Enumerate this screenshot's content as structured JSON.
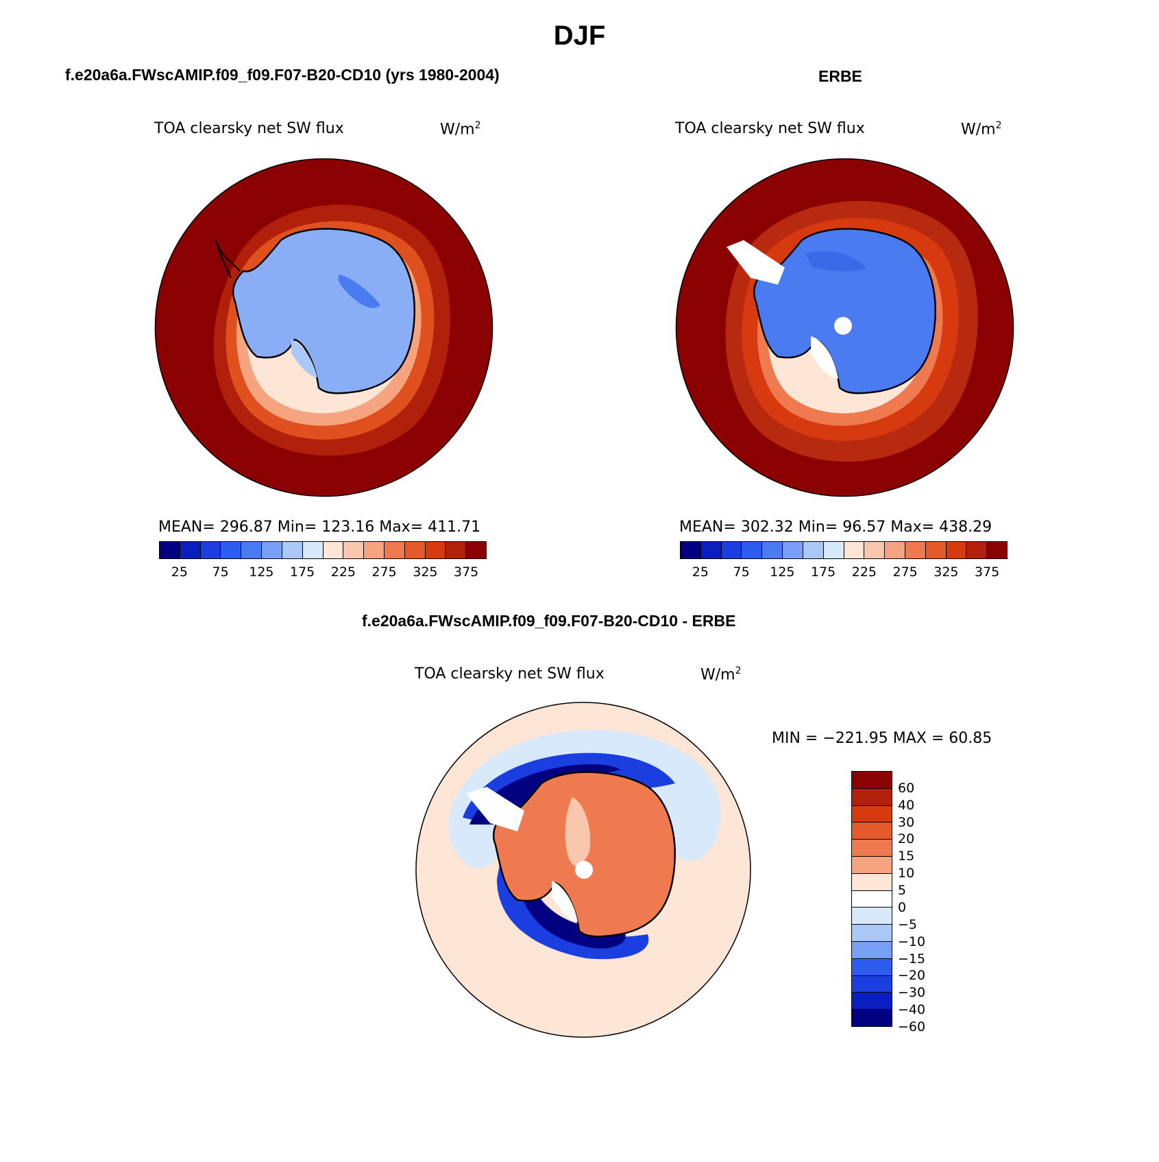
{
  "title": "DJF",
  "panels": [
    {
      "case": "f.e20a6a.FWscAMIP.f09_f09.F07-B20-CD10 (yrs 1980-2004)",
      "variable": "TOA clearsky net SW flux",
      "units": "W/m",
      "units_sup": "2",
      "stats": "MEAN= 296.87   Min= 123.16   Max= 411.71",
      "colorbar_ticks": [
        "25",
        "75",
        "125",
        "175",
        "225",
        "275",
        "325",
        "375"
      ],
      "colorbar_colors": [
        "#000080",
        "#0a1fbf",
        "#1a3ee0",
        "#2e5cf0",
        "#4a7bf0",
        "#7aa0f5",
        "#aac8f8",
        "#d8e9fb",
        "#fde6d6",
        "#f8c7ad",
        "#f5a47f",
        "#f07a50",
        "#e55a2a",
        "#d83a10",
        "#b0200a",
        "#8b0000"
      ],
      "fill": {
        "outer": "#8b0000",
        "ring1": "#b0200a",
        "ring2": "#e0501e",
        "ring3": "#f5a47f",
        "ring4": "#fde6d6",
        "ice": "#8aaef5",
        "ice_core": "#4a7bf0",
        "ice_shelf": "#aac8f8"
      }
    },
    {
      "case": "ERBE",
      "variable": "TOA clearsky net SW flux",
      "units": "W/m",
      "units_sup": "2",
      "stats": "MEAN= 302.32   Min=   96.57   Max= 438.29",
      "colorbar_ticks": [
        "25",
        "75",
        "125",
        "175",
        "225",
        "275",
        "325",
        "375"
      ],
      "colorbar_colors": [
        "#000080",
        "#0a1fbf",
        "#1a3ee0",
        "#2e5cf0",
        "#4a7bf0",
        "#7aa0f5",
        "#aac8f8",
        "#d8e9fb",
        "#fde6d6",
        "#f8c7ad",
        "#f5a47f",
        "#f07a50",
        "#e55a2a",
        "#d83a10",
        "#b0200a",
        "#8b0000"
      ],
      "fill": {
        "outer": "#8b0000",
        "ring1": "#b82a10",
        "ring2": "#d83a10",
        "ring3": "#f07a50",
        "ring4": "#fde6d6",
        "ice": "#4a7bf0",
        "ice_core": "#3a6ae8",
        "ice_shelf": "#ffffff"
      }
    },
    {
      "case": "f.e20a6a.FWscAMIP.f09_f09.F07-B20-CD10 - ERBE",
      "variable": "TOA clearsky net SW flux",
      "units": "W/m",
      "units_sup": "2",
      "stats": "MIN = −221.95 MAX =   60.85",
      "colorbar_ticks": [
        "60",
        "40",
        "30",
        "20",
        "15",
        "10",
        "5",
        "0",
        "−5",
        "−10",
        "−15",
        "−20",
        "−30",
        "−40",
        "−60"
      ],
      "colorbar_colors": [
        "#8b0000",
        "#b0200a",
        "#d83a10",
        "#e55a2a",
        "#f07a50",
        "#f5a47f",
        "#fde6d6",
        "#ffffff",
        "#d8e9fb",
        "#aac8f8",
        "#7aa0f5",
        "#2e5cf0",
        "#1a3ee0",
        "#0a1fbf",
        "#000080"
      ],
      "fill": {
        "outer": "#fde6d6",
        "ring1": "#d8e9fb",
        "ring2": "#1a3ee0",
        "ring3": "#000080",
        "ice": "#f07a50",
        "ice_light": "#f8c7ad"
      }
    }
  ]
}
